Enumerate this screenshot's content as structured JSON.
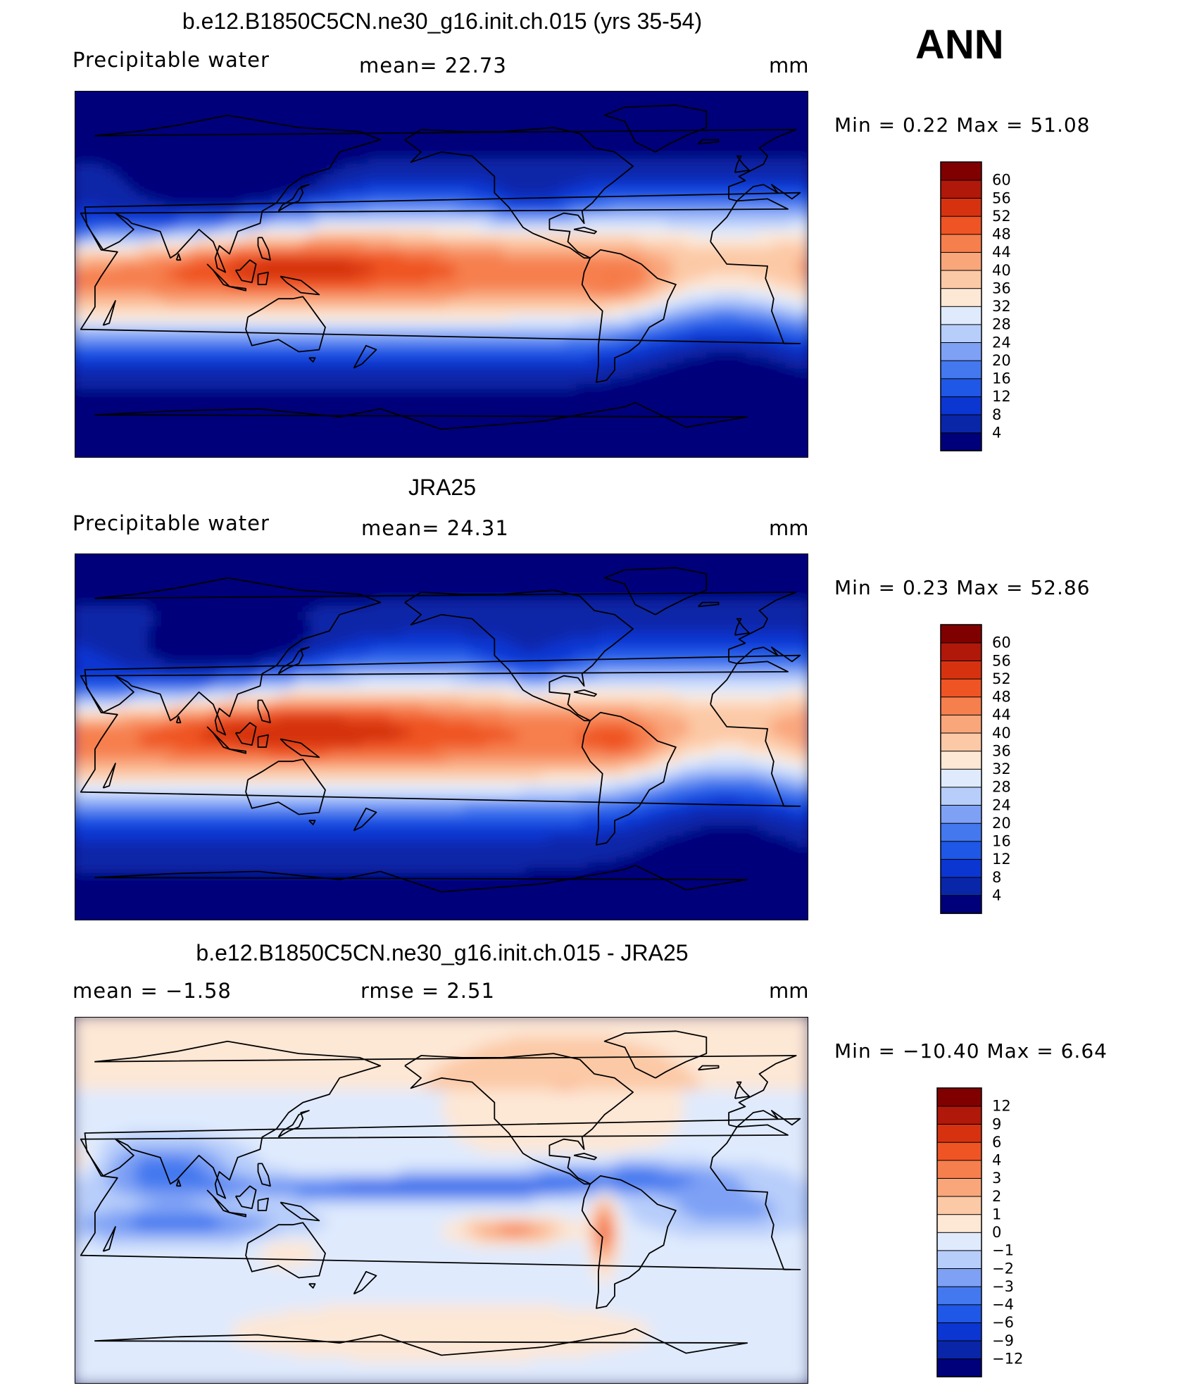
{
  "header": {
    "season": "ANN"
  },
  "units": "mm",
  "panels": [
    {
      "title": "b.e12.B1850C5CN.ne30_g16.init.ch.015 (yrs 35-54)",
      "left_label": "Precipitable  water",
      "mid_label": "mean=   22.73",
      "min_max": "Min  =     0.22  Max  =    51.08"
    },
    {
      "title": "JRA25",
      "left_label": "Precipitable  water",
      "mid_label": "mean=   24.31",
      "min_max": "Min  =     0.23  Max  =    52.86"
    },
    {
      "title": "b.e12.B1850C5CN.ne30_g16.init.ch.015 - JRA25",
      "left_label": "mean  =    −1.58",
      "mid_label": "rmse  =     2.51",
      "min_max": "Min  =  −10.40  Max  =     6.64"
    }
  ],
  "chart_data": [
    {
      "type": "heatmap",
      "title": "b.e12.B1850C5CN.ne30_g16.init.ch.015 (yrs 35-54)",
      "variable": "Precipitable  water",
      "units": "mm",
      "mean": 22.73,
      "min": 0.22,
      "max": 51.08,
      "colorbar_levels": [
        4,
        8,
        12,
        16,
        20,
        24,
        28,
        32,
        36,
        40,
        44,
        48,
        52,
        56,
        60
      ],
      "colorbar_colors": [
        "#00007a",
        "#0a26a8",
        "#0b36d2",
        "#1f57e6",
        "#4378ef",
        "#7ea1f5",
        "#b7cdfa",
        "#dfeafd",
        "#fde7d5",
        "#fcc9a6",
        "#f9a67b",
        "#f67f4e",
        "#ef5424",
        "#d63210",
        "#b0180a",
        "#800000"
      ]
    },
    {
      "type": "heatmap",
      "title": "JRA25",
      "variable": "Precipitable  water",
      "units": "mm",
      "mean": 24.31,
      "min": 0.23,
      "max": 52.86,
      "colorbar_levels": [
        4,
        8,
        12,
        16,
        20,
        24,
        28,
        32,
        36,
        40,
        44,
        48,
        52,
        56,
        60
      ],
      "colorbar_colors": [
        "#00007a",
        "#0a26a8",
        "#0b36d2",
        "#1f57e6",
        "#4378ef",
        "#7ea1f5",
        "#b7cdfa",
        "#dfeafd",
        "#fde7d5",
        "#fcc9a6",
        "#f9a67b",
        "#f67f4e",
        "#ef5424",
        "#d63210",
        "#b0180a",
        "#800000"
      ]
    },
    {
      "type": "heatmap",
      "title": "b.e12.B1850C5CN.ne30_g16.init.ch.015 - JRA25",
      "units": "mm",
      "mean": -1.58,
      "rmse": 2.51,
      "min": -10.4,
      "max": 6.64,
      "colorbar_levels": [
        -12,
        -9,
        -6,
        -4,
        -3,
        -2,
        -1,
        0,
        1,
        2,
        3,
        4,
        6,
        9,
        12
      ],
      "colorbar_colors": [
        "#00007a",
        "#0a26a8",
        "#0b36d2",
        "#1f57e6",
        "#4378ef",
        "#7ea1f5",
        "#b7cdfa",
        "#dfeafd",
        "#fde7d5",
        "#fcc9a6",
        "#f9a67b",
        "#f67f4e",
        "#ef5424",
        "#d63210",
        "#b0180a",
        "#800000"
      ]
    }
  ]
}
